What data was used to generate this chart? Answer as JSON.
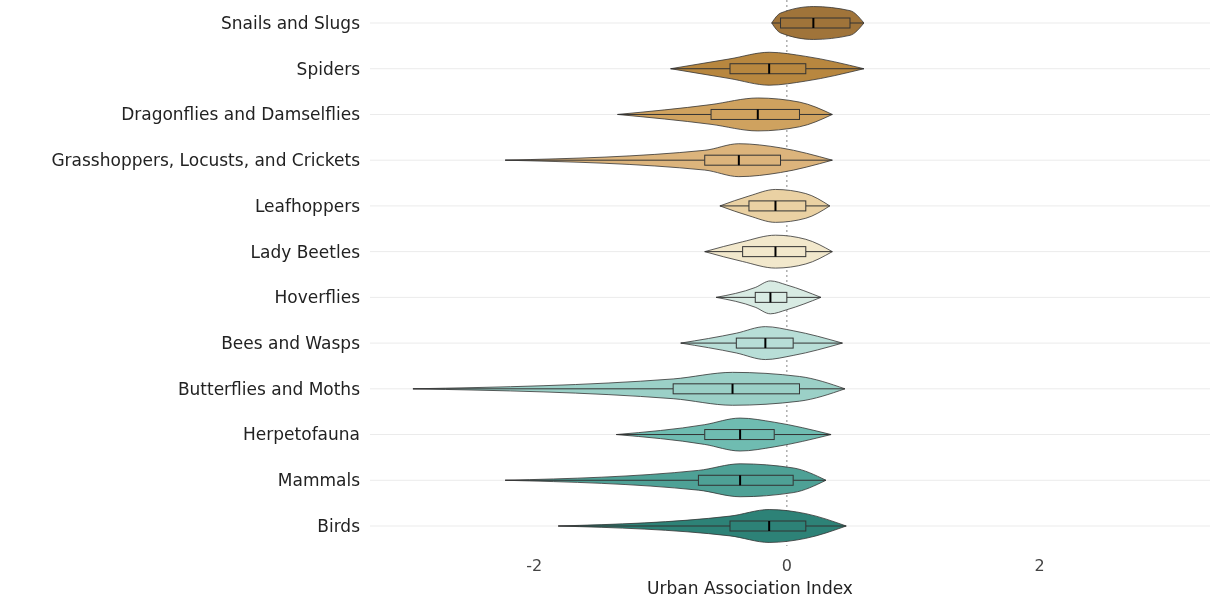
{
  "chart_data": {
    "type": "box",
    "orientation": "horizontal",
    "xlabel": "Urban Association Index",
    "categories": [
      "Snails and Slugs",
      "Spiders",
      "Dragonflies and Damselflies",
      "Grasshoppers, Locusts, and Crickets",
      "Leafhoppers",
      "Lady Beetles",
      "Hoverflies",
      "Bees and Wasps",
      "Butterflies and Moths",
      "Herpetofauna",
      "Mammals",
      "Birds"
    ],
    "colors": [
      "#a0743a",
      "#b8873f",
      "#cfa25f",
      "#dcb47c",
      "#ead1a3",
      "#f2e8cc",
      "#d8ebe3",
      "#b8ded7",
      "#9bd0c7",
      "#6fbcb1",
      "#4ea196",
      "#2d8277"
    ],
    "boxes": [
      {
        "low": -0.12,
        "q1": -0.05,
        "median": 0.21,
        "q3": 0.5,
        "high": 0.61
      },
      {
        "low": -0.92,
        "q1": -0.45,
        "median": -0.14,
        "q3": 0.15,
        "high": 0.61
      },
      {
        "low": -1.34,
        "q1": -0.6,
        "median": -0.23,
        "q3": 0.1,
        "high": 0.36
      },
      {
        "low": -2.23,
        "q1": -0.65,
        "median": -0.38,
        "q3": -0.05,
        "high": 0.36
      },
      {
        "low": -0.53,
        "q1": -0.3,
        "median": -0.09,
        "q3": 0.15,
        "high": 0.34
      },
      {
        "low": -0.65,
        "q1": -0.35,
        "median": -0.09,
        "q3": 0.15,
        "high": 0.36
      },
      {
        "low": -0.56,
        "q1": -0.25,
        "median": -0.13,
        "q3": 0.0,
        "high": 0.27
      },
      {
        "low": -0.84,
        "q1": -0.4,
        "median": -0.17,
        "q3": 0.05,
        "high": 0.44
      },
      {
        "low": -2.96,
        "q1": -0.9,
        "median": -0.43,
        "q3": 0.1,
        "high": 0.46
      },
      {
        "low": -1.35,
        "q1": -0.65,
        "median": -0.37,
        "q3": -0.1,
        "high": 0.35
      },
      {
        "low": -2.23,
        "q1": -0.7,
        "median": -0.37,
        "q3": 0.05,
        "high": 0.31
      },
      {
        "low": -1.81,
        "q1": -0.45,
        "median": -0.14,
        "q3": 0.15,
        "high": 0.47
      }
    ],
    "xlim": [
      -3.3,
      3.35
    ],
    "xticks": [
      -2,
      0,
      2
    ],
    "grid": "y",
    "ref_lines": [
      {
        "axis": "x",
        "value": 0,
        "line_style": "dotted",
        "color": "#999999"
      }
    ]
  }
}
